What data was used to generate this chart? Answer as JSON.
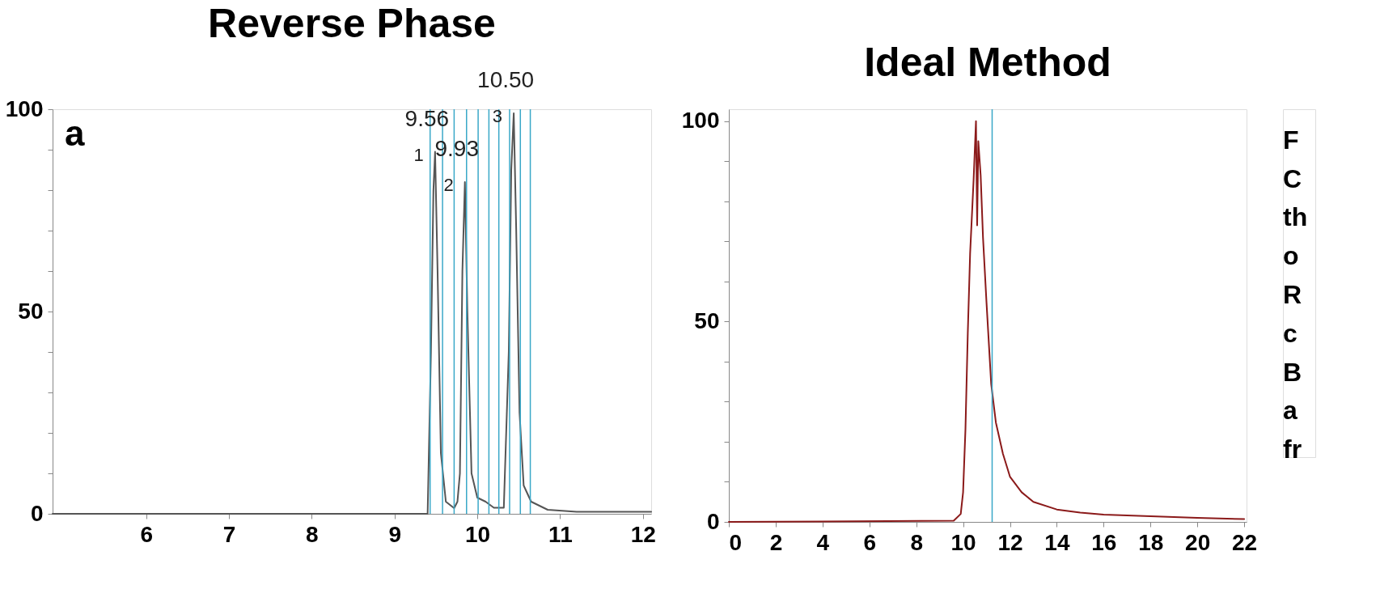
{
  "chart_data": [
    {
      "type": "line",
      "title": "Reverse Phase",
      "xlim": [
        4.87,
        12.1
      ],
      "ylim": [
        0,
        100
      ],
      "xticks": [
        6,
        7,
        8,
        9,
        10,
        11,
        12
      ],
      "yticks": [
        0,
        {
          "value": 10,
          "label": null
        },
        {
          "value": 20,
          "label": null
        },
        {
          "value": 30,
          "label": null
        },
        {
          "value": 40,
          "label": null
        },
        50,
        {
          "value": 60,
          "label": null
        },
        {
          "value": 70,
          "label": null
        },
        {
          "value": 80,
          "label": null
        },
        {
          "value": 90,
          "label": null
        },
        100
      ],
      "grid": false,
      "series": [
        {
          "color": "#555555",
          "x": [
            4.87,
            9.4,
            9.44,
            9.47,
            9.49,
            9.52,
            9.56,
            9.62,
            9.72,
            9.76,
            9.79,
            9.82,
            9.85,
            9.88,
            9.93,
            10.0,
            10.1,
            10.2,
            10.32,
            10.38,
            10.41,
            10.44,
            10.47,
            10.51,
            10.56,
            10.65,
            10.85,
            11.2,
            12.1
          ],
          "values": [
            0,
            0,
            40,
            80,
            89.5,
            60,
            15,
            3,
            1.4,
            3,
            10,
            60,
            82,
            50,
            10,
            4,
            3,
            1.5,
            1.5,
            40,
            85,
            99,
            70,
            25,
            7,
            3,
            1,
            0.5,
            0.5
          ]
        }
      ],
      "ref_lines": [
        {
          "axis": "x",
          "value": 9.43,
          "color": "#3aa8c8"
        },
        {
          "axis": "x",
          "value": 9.58,
          "color": "#3aa8c8"
        },
        {
          "axis": "x",
          "value": 9.72,
          "color": "#3aa8c8"
        },
        {
          "axis": "x",
          "value": 9.87,
          "color": "#3aa8c8"
        },
        {
          "axis": "x",
          "value": 10.01,
          "color": "#3aa8c8"
        },
        {
          "axis": "x",
          "value": 10.14,
          "color": "#3aa8c8"
        },
        {
          "axis": "x",
          "value": 10.26,
          "color": "#3aa8c8"
        },
        {
          "axis": "x",
          "value": 10.39,
          "color": "#3aa8c8"
        },
        {
          "axis": "x",
          "value": 10.52,
          "color": "#3aa8c8"
        },
        {
          "axis": "x",
          "value": 10.64,
          "color": "#3aa8c8"
        }
      ],
      "annotations": [
        "a",
        {
          "text": "9.56",
          "x": 9.49,
          "y": 89.5
        },
        {
          "text": "9.93",
          "x": 9.85,
          "y": 82
        },
        {
          "text": "10.50",
          "x": 10.44,
          "y": 99
        },
        {
          "text": "1",
          "x": 9.49,
          "y": 89.5
        },
        {
          "text": "2",
          "x": 9.85,
          "y": 82
        },
        {
          "text": "3",
          "x": 10.44,
          "y": 99
        }
      ]
    },
    {
      "type": "line",
      "title": "Ideal Method",
      "xlim": [
        0,
        22.1
      ],
      "ylim": [
        0,
        103
      ],
      "xticks": [
        0,
        2,
        4,
        6,
        8,
        10,
        12,
        14,
        16,
        18,
        20,
        22
      ],
      "yticks": [
        0,
        {
          "value": 10,
          "label": null
        },
        {
          "value": 20,
          "label": null
        },
        {
          "value": 30,
          "label": null
        },
        {
          "value": 40,
          "label": null
        },
        50,
        {
          "value": 60,
          "label": null
        },
        {
          "value": 70,
          "label": null
        },
        {
          "value": 80,
          "label": null
        },
        {
          "value": 90,
          "label": null
        },
        100
      ],
      "grid": false,
      "series": [
        {
          "color": "#8b1a1a",
          "x": [
            0,
            9.6,
            9.9,
            10.0,
            10.1,
            10.2,
            10.3,
            10.45,
            10.55,
            10.6,
            10.65,
            10.75,
            10.85,
            11.0,
            11.2,
            11.4,
            11.7,
            12.0,
            12.5,
            13.0,
            14.0,
            15.0,
            16.0,
            18.0,
            20.0,
            22.0
          ],
          "values": [
            0,
            0.3,
            2,
            7.4,
            23,
            47,
            67,
            85.5,
            100,
            74,
            95,
            86.5,
            71,
            54.7,
            34.4,
            24.8,
            17,
            11.3,
            7.4,
            5,
            3.1,
            2.3,
            1.8,
            1.4,
            1.0,
            0.7
          ]
        }
      ],
      "ref_lines": [
        {
          "axis": "x",
          "value": 11.24,
          "color": "#3aa8c8"
        }
      ]
    },
    {
      "type": "other",
      "annotations": [
        "F",
        "C",
        "th",
        "o",
        "R",
        "c",
        "B",
        "a",
        "fr"
      ]
    }
  ]
}
